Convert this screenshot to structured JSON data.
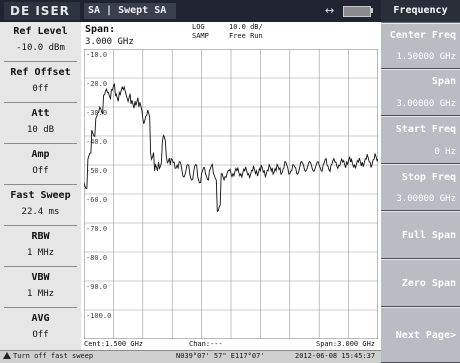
{
  "topbar": {
    "logo": "DE ISER",
    "mode": "SA | Swept SA",
    "usb_icon": "usb-icon",
    "battery_icon": "battery-icon"
  },
  "left_panel": [
    {
      "label": "Ref Level",
      "value": "-10.0 dBm"
    },
    {
      "label": "Ref Offset",
      "value": "0ff"
    },
    {
      "label": "Att",
      "value": "10 dB"
    },
    {
      "label": "Amp",
      "value": "Off"
    },
    {
      "label": "Fast Sweep",
      "value": "22.4 ms"
    },
    {
      "label": "RBW",
      "value": "1 MHz"
    },
    {
      "label": "VBW",
      "value": "1 MHz"
    },
    {
      "label": "AVG",
      "value": "Off"
    }
  ],
  "plot_header": {
    "span_label": "Span:",
    "span_value": "3.000  GHz",
    "log": "LOG",
    "samp": "SAMP",
    "scale": "10.0 dB/",
    "run": "Free Run"
  },
  "y_labels": [
    "-10.0",
    "-20.0",
    "-30.0",
    "-40.0",
    "-50.0",
    "-60.0",
    "-70.0",
    "-80.0",
    "-90.0",
    "-100.0"
  ],
  "plot_footer": {
    "center": "Cent:1.500 GHz",
    "chan": "Chan:---",
    "span": "Span:3.000 GHz"
  },
  "right_panel": {
    "title": "Frequency",
    "keys": [
      {
        "label": "Center Freq",
        "value": "1.50000 GHz"
      },
      {
        "label": "Span",
        "value": "3.00000 GHz"
      },
      {
        "label": "Start Freq",
        "value": "0 Hz"
      },
      {
        "label": "Stop  Freq",
        "value": "3.00000 GHz"
      },
      {
        "label": "Full Span",
        "value": ""
      },
      {
        "label": "Zero Span",
        "value": ""
      },
      {
        "label": "Next Page>",
        "value": ""
      }
    ]
  },
  "status": {
    "message": "Turn off fast sweep",
    "gps": "N039°07' 57\"  E117°07'",
    "time": "2012-06-08 15:45:37"
  },
  "chart_data": {
    "type": "line",
    "x_range_ghz": [
      0,
      3
    ],
    "ylim": [
      -110,
      -10
    ],
    "y_unit": "dBm",
    "grid": true,
    "trace_level_note": "noise trace, peaks near -20 dBm at low frequency",
    "series": [
      {
        "values": [
          -56,
          -48,
          -38,
          -34,
          -30,
          -26,
          -25,
          -24,
          -26,
          -25,
          -24,
          -27,
          -29,
          -28,
          -30,
          -34,
          -33,
          -46,
          -52,
          -49,
          -42,
          -47,
          -50,
          -49,
          -51,
          -52,
          -52,
          -53,
          -52,
          -54,
          -53,
          -53,
          -52,
          -53,
          -66,
          -53,
          -54,
          -52,
          -53,
          -52,
          -53,
          -52,
          -53,
          -52,
          -52,
          -52,
          -52,
          -52,
          -51,
          -52,
          -51,
          -51,
          -51,
          -52,
          -51,
          -51,
          -50,
          -51,
          -50,
          -51,
          -50,
          -50,
          -50,
          -50,
          -49,
          -50,
          -49,
          -49,
          -49,
          -50,
          -49,
          -49,
          -48,
          -49,
          -48,
          -48
        ]
      }
    ]
  }
}
